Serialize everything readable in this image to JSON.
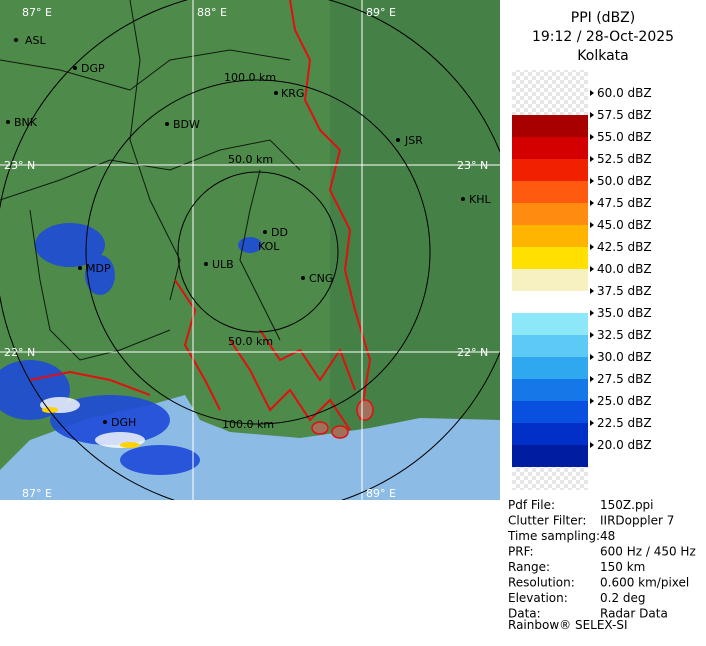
{
  "header": {
    "title": "PPI (dBZ)",
    "datetime": "19:12 / 28-Oct-2025",
    "location": "Kolkata"
  },
  "scale": {
    "labels": [
      "60.0 dBZ",
      "57.5 dBZ",
      "55.0 dBZ",
      "52.5 dBZ",
      "50.0 dBZ",
      "47.5 dBZ",
      "45.0 dBZ",
      "42.5 dBZ",
      "40.0 dBZ",
      "37.5 dBZ",
      "35.0 dBZ",
      "32.5 dBZ",
      "30.0 dBZ",
      "27.5 dBZ",
      "25.0 dBZ",
      "22.5 dBZ",
      "20.0 dBZ"
    ],
    "colors": [
      "#ffffff",
      "#a80000",
      "#d40000",
      "#f02000",
      "#ff5a10",
      "#ff8c10",
      "#ffb400",
      "#ffe000",
      "#f7f0c0",
      "#ffffff",
      "#8ce8f8",
      "#5ccaf4",
      "#30a8f0",
      "#1478e8",
      "#0a50e0",
      "#0030c8",
      "#001ca0"
    ]
  },
  "info": [
    [
      "Pdf File:",
      "150Z.ppi"
    ],
    [
      "Clutter Filter:",
      "IIRDoppler 7"
    ],
    [
      "Time sampling:",
      "48"
    ],
    [
      "PRF:",
      "600 Hz / 450 Hz"
    ],
    [
      "Range:",
      "150 km"
    ],
    [
      "Resolution:",
      "0.600 km/pixel"
    ],
    [
      "Elevation:",
      "0.2 deg"
    ],
    [
      "Data:",
      "Radar Data"
    ]
  ],
  "footer": "Rainbow® SELEX-SI",
  "map": {
    "grid_labels": [
      "87° E",
      "88° E",
      "89° E",
      "23° N",
      "23° N",
      "22° N",
      "22° N",
      "87° E",
      "89° E"
    ],
    "range_labels": [
      "100.0 km",
      "50.0 km",
      "50.0 km",
      "100.0 km"
    ],
    "cities": [
      "ASL",
      "DGP",
      "BNK",
      "BDW",
      "KRG",
      "JSR",
      "KHL",
      "DD",
      "KOL",
      "ULB",
      "CNG",
      "MDP",
      "DGH"
    ]
  }
}
